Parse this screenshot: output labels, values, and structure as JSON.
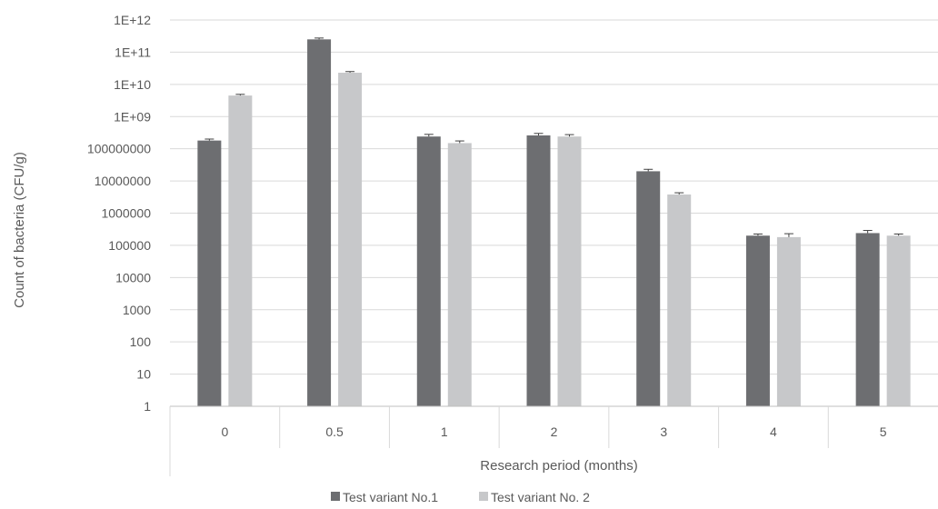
{
  "chart_data": {
    "type": "bar",
    "scale": "log",
    "ylim": [
      1,
      1000000000000
    ],
    "yticks": [
      "1",
      "10",
      "100",
      "1000",
      "10000",
      "100000",
      "1000000",
      "10000000",
      "100000000",
      "1E+09",
      "1E+10",
      "1E+11",
      "1E+12"
    ],
    "categories": [
      "0",
      "0.5",
      "1",
      "2",
      "3",
      "4",
      "5"
    ],
    "xlabel": "Research period (months)",
    "ylabel": "Count of bacteria (CFU/g)",
    "grid": true,
    "legend_position": "bottom",
    "series": [
      {
        "name": "Test variant No.1",
        "color": "#6d6e71",
        "values": [
          180000000,
          250000000000,
          240000000,
          260000000,
          20000000,
          200000,
          240000
        ],
        "error_upper": [
          200000000,
          275000000000,
          280000000,
          300000000,
          23000000,
          225000,
          290000
        ]
      },
      {
        "name": "Test variant No. 2",
        "color": "#c7c8ca",
        "values": [
          4500000000,
          23000000000,
          150000000,
          240000000,
          3800000,
          180000,
          200000
        ],
        "error_upper": [
          4900000000,
          25000000000,
          175000000,
          275000000,
          4300000,
          230000,
          225000
        ]
      }
    ]
  }
}
